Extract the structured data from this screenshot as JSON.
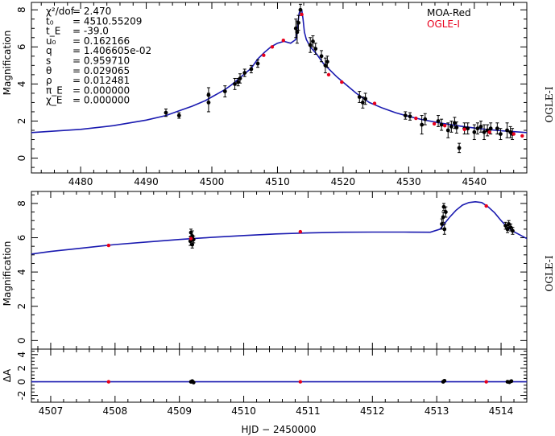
{
  "chart_data": [
    {
      "type": "scatter",
      "panel": "top",
      "ylabel": "Magnification",
      "xlim": [
        4472.5,
        4548
      ],
      "ylim": [
        -0.8,
        8.4
      ],
      "xticks": [
        4480,
        4490,
        4500,
        4510,
        4520,
        4530,
        4540
      ],
      "yticks": [
        0,
        2,
        4,
        6,
        8
      ],
      "side_label": "OGLE-I",
      "legend": [
        {
          "label": "MOA-Red",
          "color": "#000000"
        },
        {
          "label": "OGLE-I",
          "color": "#e8001c"
        }
      ],
      "params": [
        {
          "name": "χ²/dof",
          "value": "= 2.470"
        },
        {
          "name": "t₀",
          "value": "= 4510.55209"
        },
        {
          "name": "t_E",
          "value": "= -39.0"
        },
        {
          "name": "u₀",
          "value": "= 0.162166"
        },
        {
          "name": "q",
          "value": "= 1.406605e-02"
        },
        {
          "name": "s",
          "value": "= 0.959710"
        },
        {
          "name": "θ",
          "value": "= 0.029065"
        },
        {
          "name": "ρ",
          "value": "= 0.012481"
        },
        {
          "name": "π_E",
          "value": "= 0.000000"
        },
        {
          "name": "χ_E",
          "value": "= 0.000000"
        }
      ],
      "series": [
        {
          "name": "MOA-Red",
          "color": "#000000",
          "points": [
            [
              4493,
              2.45,
              0.2
            ],
            [
              4495,
              2.3,
              0.15
            ],
            [
              4499.5,
              3.0,
              0.5
            ],
            [
              4499.5,
              3.4,
              0.4
            ],
            [
              4502,
              3.6,
              0.3
            ],
            [
              4503.5,
              4.0,
              0.3
            ],
            [
              4504,
              4.1,
              0.2
            ],
            [
              4504.3,
              4.3,
              0.25
            ],
            [
              4505,
              4.6,
              0.2
            ],
            [
              4506,
              4.8,
              0.2
            ],
            [
              4507,
              5.1,
              0.2
            ],
            [
              4512.8,
              7.0,
              0.5
            ],
            [
              4513,
              6.8,
              0.6
            ],
            [
              4513.2,
              7.3,
              0.4
            ],
            [
              4513.5,
              8.0,
              0.3
            ],
            [
              4515,
              6.1,
              0.4
            ],
            [
              4515.4,
              6.3,
              0.3
            ],
            [
              4515.8,
              5.9,
              0.3
            ],
            [
              4516.7,
              5.5,
              0.3
            ],
            [
              4517.3,
              5.0,
              0.4
            ],
            [
              4517.6,
              5.2,
              0.3
            ],
            [
              4522.5,
              3.3,
              0.3
            ],
            [
              4523,
              3.0,
              0.3
            ],
            [
              4523.4,
              3.2,
              0.3
            ],
            [
              4529.5,
              2.3,
              0.2
            ],
            [
              4530.2,
              2.25,
              0.2
            ],
            [
              4532,
              1.8,
              0.5
            ],
            [
              4532.5,
              2.1,
              0.3
            ],
            [
              4534.5,
              2.0,
              0.3
            ],
            [
              4535,
              1.8,
              0.3
            ],
            [
              4536,
              1.5,
              0.4
            ],
            [
              4536.5,
              1.7,
              0.3
            ],
            [
              4537,
              1.9,
              0.3
            ],
            [
              4537.3,
              1.65,
              0.3
            ],
            [
              4537.7,
              0.55,
              0.25
            ],
            [
              4538.5,
              1.6,
              0.3
            ],
            [
              4539,
              1.6,
              0.3
            ],
            [
              4540,
              1.4,
              0.4
            ],
            [
              4540.5,
              1.6,
              0.3
            ],
            [
              4541,
              1.7,
              0.3
            ],
            [
              4541.5,
              1.4,
              0.4
            ],
            [
              4542,
              1.5,
              0.3
            ],
            [
              4542.5,
              1.6,
              0.3
            ],
            [
              4543.5,
              1.6,
              0.3
            ],
            [
              4544,
              1.3,
              0.3
            ],
            [
              4545,
              1.5,
              0.4
            ],
            [
              4545.5,
              1.4,
              0.3
            ],
            [
              4545.8,
              1.3,
              0.3
            ]
          ]
        },
        {
          "name": "OGLE-I",
          "color": "#e8001c",
          "points": [
            [
              4507.9,
              5.55
            ],
            [
              4509.2,
              6.0
            ],
            [
              4510.9,
              6.35
            ],
            [
              4513.7,
              7.75
            ],
            [
              4517.8,
              4.5
            ],
            [
              4519.8,
              4.1
            ],
            [
              4524.8,
              2.95
            ],
            [
              4531.1,
              2.15
            ],
            [
              4533.9,
              1.85
            ],
            [
              4535.5,
              1.75
            ],
            [
              4538.5,
              1.55
            ],
            [
              4542.3,
              1.4
            ],
            [
              4546.0,
              1.3
            ],
            [
              4547.3,
              1.2
            ]
          ]
        }
      ],
      "model_curve": {
        "color": "#1a1ab0",
        "x": [
          4472.5,
          4480,
          4485,
          4490,
          4493,
          4495,
          4497,
          4499,
          4500,
          4501,
          4502,
          4503,
          4504,
          4505,
          4506,
          4507,
          4508,
          4509,
          4510,
          4511,
          4512,
          4512.8,
          4513.1,
          4513.3,
          4513.5,
          4513.7,
          4513.9,
          4514.1,
          4514.4,
          4515,
          4516,
          4517,
          4518,
          4519,
          4520,
          4522,
          4524,
          4526,
          4528,
          4530,
          4532,
          4535,
          4538,
          4541,
          4544,
          4548
        ],
        "y": [
          1.38,
          1.55,
          1.75,
          2.05,
          2.3,
          2.55,
          2.8,
          3.1,
          3.3,
          3.5,
          3.7,
          3.95,
          4.25,
          4.55,
          4.85,
          5.35,
          5.7,
          6.0,
          6.2,
          6.3,
          6.2,
          6.4,
          7.2,
          7.8,
          8.05,
          8.0,
          7.5,
          6.8,
          6.4,
          6.0,
          5.6,
          5.1,
          4.75,
          4.4,
          4.1,
          3.5,
          3.0,
          2.7,
          2.45,
          2.25,
          2.08,
          1.88,
          1.72,
          1.58,
          1.48,
          1.38
        ]
      }
    },
    {
      "type": "scatter",
      "panel": "zoom",
      "ylabel": "Magnification",
      "xlim": [
        4506.7,
        4514.4
      ],
      "ylim": [
        -0.5,
        8.7
      ],
      "xticks": [
        4507,
        4508,
        4509,
        4510,
        4511,
        4512,
        4513,
        4514
      ],
      "yticks": [
        0,
        2,
        4,
        6,
        8
      ],
      "side_label": "OGLE-I",
      "series": [
        {
          "name": "MOA-Red",
          "color": "#000000",
          "points": [
            [
              4509.17,
              5.8,
              0.25
            ],
            [
              4509.2,
              5.6,
              0.2
            ],
            [
              4509.2,
              6.1,
              0.3
            ],
            [
              4509.22,
              5.9,
              0.2
            ],
            [
              4509.18,
              6.3,
              0.2
            ],
            [
              4513.08,
              6.8,
              0.3
            ],
            [
              4513.1,
              7.2,
              0.3
            ],
            [
              4513.12,
              6.5,
              0.3
            ],
            [
              4513.14,
              7.5,
              0.3
            ],
            [
              4513.11,
              7.8,
              0.2
            ],
            [
              4514.07,
              6.7,
              0.2
            ],
            [
              4514.1,
              6.5,
              0.2
            ],
            [
              4514.12,
              6.8,
              0.2
            ],
            [
              4514.15,
              6.6,
              0.2
            ],
            [
              4514.18,
              6.4,
              0.2
            ]
          ]
        },
        {
          "name": "OGLE-I",
          "color": "#e8001c",
          "points": [
            [
              4507.9,
              5.55
            ],
            [
              4509.18,
              5.95
            ],
            [
              4510.88,
              6.35
            ],
            [
              4513.77,
              7.85
            ]
          ]
        }
      ],
      "model_curve": {
        "color": "#1a1ab0",
        "x": [
          4506.7,
          4507,
          4507.5,
          4508,
          4508.5,
          4509,
          4509.5,
          4510,
          4510.5,
          4511,
          4511.5,
          4512,
          4512.5,
          4512.9,
          4513.05,
          4513.2,
          4513.3,
          4513.4,
          4513.5,
          4513.6,
          4513.7,
          4513.8,
          4513.9,
          4514,
          4514.1,
          4514.2,
          4514.3,
          4514.4
        ],
        "y": [
          5.05,
          5.2,
          5.4,
          5.6,
          5.75,
          5.9,
          6.02,
          6.13,
          6.22,
          6.28,
          6.32,
          6.33,
          6.33,
          6.32,
          6.5,
          7.2,
          7.6,
          7.9,
          8.05,
          8.1,
          8.05,
          7.8,
          7.45,
          7.0,
          6.6,
          6.35,
          6.15,
          5.95
        ]
      }
    },
    {
      "type": "scatter",
      "panel": "residuals",
      "ylabel": "ΔA",
      "xlabel": "HJD − 2450000",
      "xlim": [
        4506.7,
        4514.4
      ],
      "ylim": [
        -3.0,
        4.8
      ],
      "xticks": [
        4507,
        4508,
        4509,
        4510,
        4511,
        4512,
        4513,
        4514
      ],
      "yticks": [
        -2,
        0,
        2,
        4
      ],
      "series": [
        {
          "name": "MOA-Red",
          "color": "#000000",
          "points": [
            [
              4509.18,
              0.0
            ],
            [
              4509.2,
              0.1
            ],
            [
              4509.22,
              -0.1
            ],
            [
              4513.1,
              0.0
            ],
            [
              4513.12,
              0.15
            ],
            [
              4514.1,
              0.0
            ],
            [
              4514.13,
              -0.05
            ],
            [
              4514.16,
              0.1
            ]
          ]
        },
        {
          "name": "OGLE-I",
          "color": "#e8001c",
          "points": [
            [
              4507.9,
              0.0
            ],
            [
              4510.88,
              0.0
            ],
            [
              4513.77,
              0.0
            ]
          ]
        }
      ],
      "model_curve": {
        "color": "#1a1ab0",
        "x": [
          4506.7,
          4514.4
        ],
        "y": [
          0,
          0
        ]
      }
    }
  ]
}
